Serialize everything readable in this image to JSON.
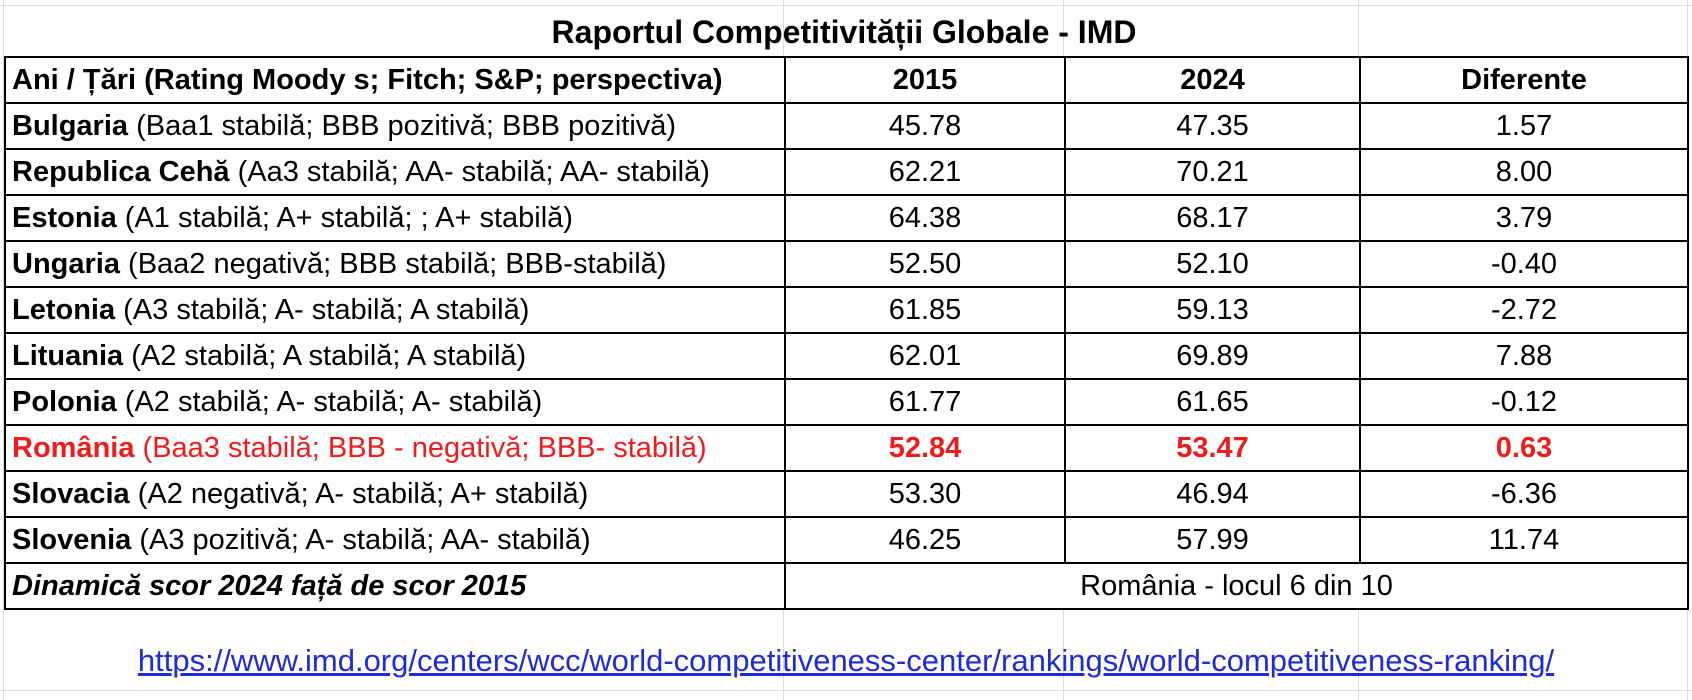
{
  "title": "Raportul Competitivității Globale - IMD",
  "columns": {
    "label": "Ani / Țări (Rating Moody s; Fitch; S&P; perspectiva)",
    "y2015": "2015",
    "y2024": "2024",
    "diff": "Diferente"
  },
  "rows": [
    {
      "name": "Bulgaria",
      "rating": " (Baa1 stabilă; BBB pozitivă; BBB pozitivă)",
      "v2015": "45.78",
      "v2024": "47.35",
      "diff": "1.57",
      "highlight": false
    },
    {
      "name": "Republica Cehă",
      "rating": " (Aa3 stabilă; AA- stabilă; AA- stabilă)",
      "v2015": "62.21",
      "v2024": "70.21",
      "diff": "8.00",
      "highlight": false
    },
    {
      "name": "Estonia",
      "rating": " (A1 stabilă; A+ stabilă; ; A+ stabilă)",
      "v2015": "64.38",
      "v2024": "68.17",
      "diff": "3.79",
      "highlight": false
    },
    {
      "name": "Ungaria",
      "rating": " (Baa2 negativă; BBB stabilă; BBB-stabilă)",
      "v2015": "52.50",
      "v2024": "52.10",
      "diff": "-0.40",
      "highlight": false
    },
    {
      "name": "Letonia",
      "rating": " (A3 stabilă; A- stabilă; A stabilă)",
      "v2015": "61.85",
      "v2024": "59.13",
      "diff": "-2.72",
      "highlight": false
    },
    {
      "name": "Lituania",
      "rating": " (A2 stabilă; A stabilă; A stabilă)",
      "v2015": "62.01",
      "v2024": "69.89",
      "diff": "7.88",
      "highlight": false
    },
    {
      "name": "Polonia",
      "rating": " (A2 stabilă; A- stabilă; A- stabilă)",
      "v2015": "61.77",
      "v2024": "61.65",
      "diff": "-0.12",
      "highlight": false
    },
    {
      "name": "România",
      "rating": " (Baa3 stabilă; BBB - negativă; BBB- stabilă)",
      "v2015": "52.84",
      "v2024": "53.47",
      "diff": "0.63",
      "highlight": true
    },
    {
      "name": "Slovacia",
      "rating": " (A2 negativă; A- stabilă; A+ stabilă)",
      "v2015": "53.30",
      "v2024": "46.94",
      "diff": "-6.36",
      "highlight": false
    },
    {
      "name": "Slovenia",
      "rating": " (A3 pozitivă; A- stabilă; AA- stabilă)",
      "v2015": "46.25",
      "v2024": "57.99",
      "diff": "11.74",
      "highlight": false
    }
  ],
  "footer": {
    "label": "Dinamică scor 2024 față de scor 2015",
    "value": "România - locul 6 din 10"
  },
  "source_link": "https://www.imd.org/centers/wcc/world-competitiveness-center/rankings/world-competitiveness-ranking/",
  "colors": {
    "highlight": "#ee1c1c",
    "link": "#1f2bd8",
    "border": "#000000"
  }
}
